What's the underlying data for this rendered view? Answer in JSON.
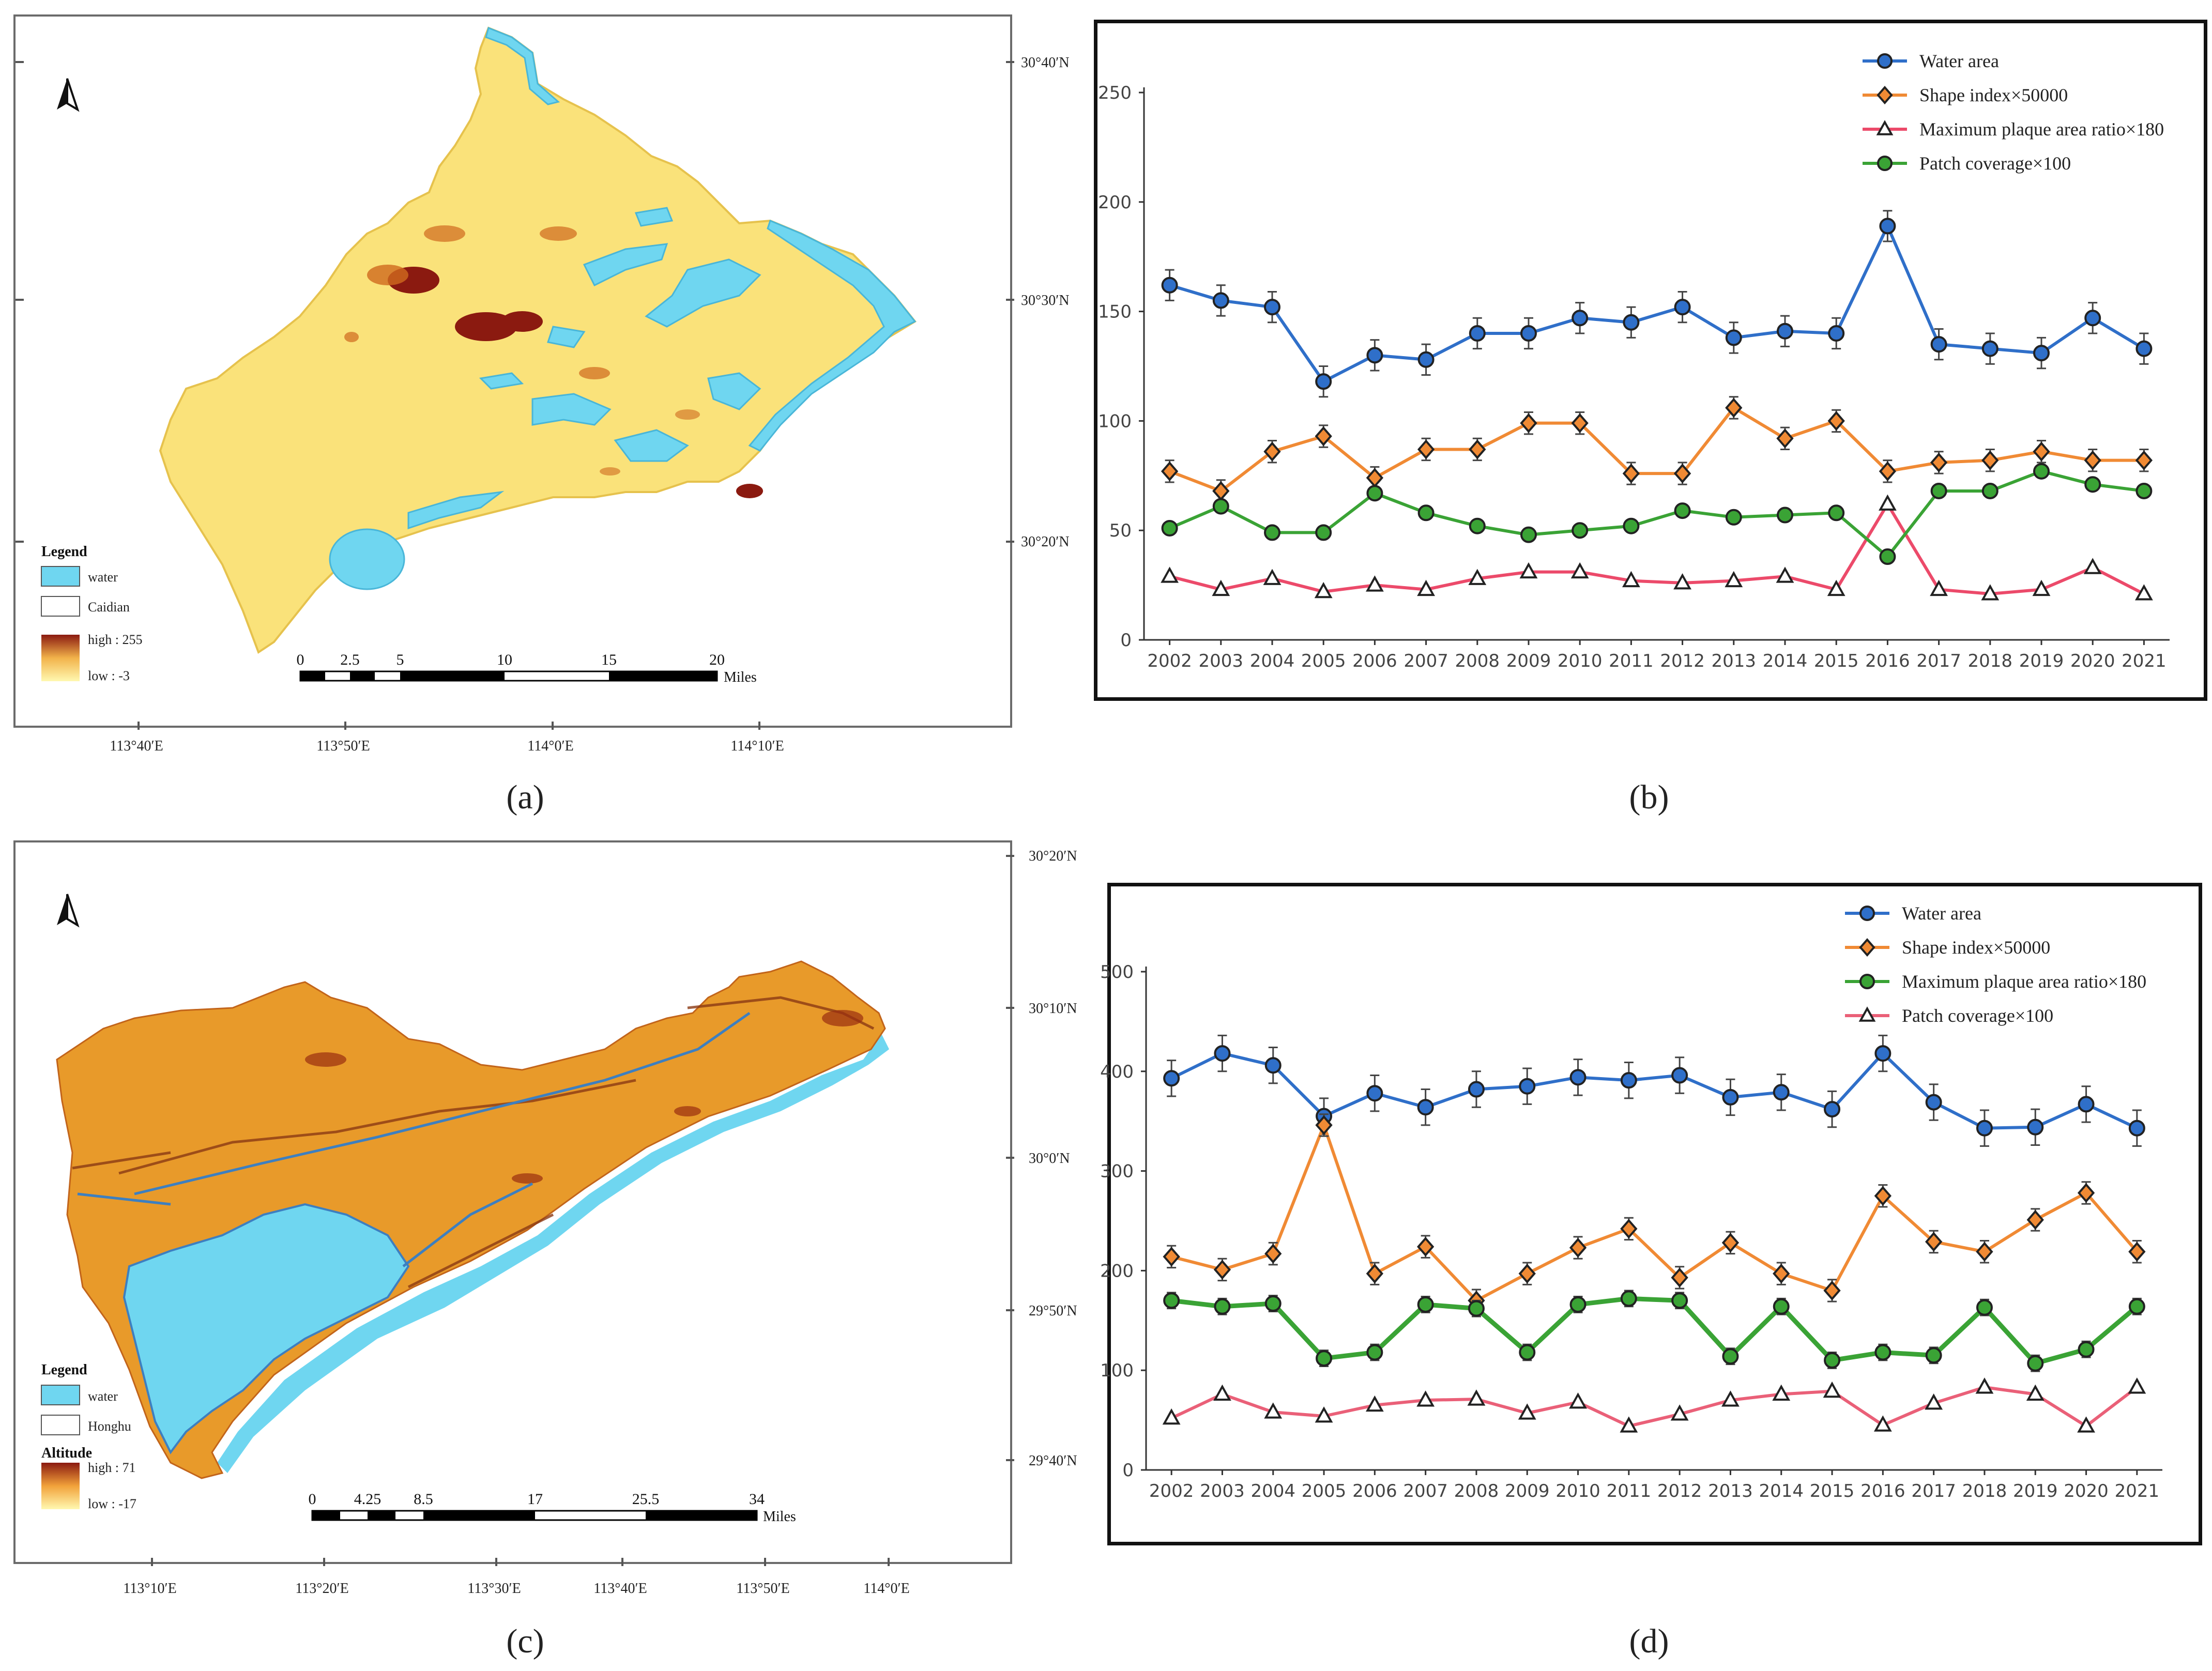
{
  "colors": {
    "water": "#6fd6f0",
    "water_edge": "#49b6d8",
    "land_a": "#fae27a",
    "land_a_edge": "#e6c24d",
    "hill": "#8b1a10",
    "hill_mid": "#cf6a1e",
    "land_c": "#e89a2a",
    "land_c_edge": "#c2641a",
    "low_c": "#fff2a0",
    "blue_series": "#2f6fc9",
    "orange_series": "#f08a34",
    "red_series": "#ec4a6a",
    "green_series": "#3aa335",
    "pink_series": "#ea6078"
  },
  "captions": {
    "a": "(a)",
    "b": "(b)",
    "c": "(c)",
    "d": "(d)"
  },
  "map_a": {
    "north": "N",
    "lat_labels": [
      "30°40′N",
      "30°30′N",
      "30°20′N"
    ],
    "lon_labels": [
      "113°40′E",
      "113°50′E",
      "114°0′E",
      "114°10′E"
    ],
    "legend": {
      "title": "Legend",
      "water": "water",
      "boundary": "Caidian",
      "high": "high : 255",
      "low": "low : -3"
    },
    "scale": {
      "ticks": [
        "0",
        "2.5",
        "5",
        "10",
        "15",
        "20"
      ],
      "unit": "Miles"
    }
  },
  "map_c": {
    "north": "N",
    "lat_labels": [
      "30°20′N",
      "30°10′N",
      "30°0′N",
      "29°50′N",
      "29°40′N"
    ],
    "lon_labels": [
      "113°10′E",
      "113°20′E",
      "113°30′E",
      "113°40′E",
      "113°50′E",
      "114°0′E"
    ],
    "legend": {
      "title": "Legend",
      "water": "water",
      "boundary": "Honghu",
      "altitude_title": "Altitude",
      "high": "high : 71",
      "low": "low : -17"
    },
    "scale": {
      "ticks": [
        "0",
        "4.25",
        "8.5",
        "17",
        "25.5",
        "34"
      ],
      "unit": "Miles"
    }
  },
  "chart_data": [
    {
      "type": "line",
      "panel": "b",
      "x": [
        "2002",
        "2003",
        "2004",
        "2005",
        "2006",
        "2007",
        "2008",
        "2009",
        "2010",
        "2011",
        "2012",
        "2013",
        "2014",
        "2015",
        "2016",
        "2017",
        "2018",
        "2019",
        "2020",
        "2021"
      ],
      "ylim": [
        0,
        250
      ],
      "yticks": [
        0,
        50,
        100,
        150,
        200,
        250
      ],
      "legend_position": "top-right",
      "series": [
        {
          "name": "Water area",
          "color": "#2f6fc9",
          "marker": "circle",
          "marker_fill": "#2f6fc9",
          "error": 7,
          "values": [
            162,
            155,
            152,
            118,
            130,
            128,
            140,
            140,
            147,
            145,
            152,
            138,
            141,
            140,
            189,
            135,
            133,
            131,
            147,
            133
          ]
        },
        {
          "name": "Shape index×50000",
          "color": "#f08a34",
          "marker": "diamond",
          "marker_fill": "#f08a34",
          "error": 5,
          "values": [
            77,
            68,
            86,
            93,
            74,
            87,
            87,
            99,
            99,
            76,
            76,
            106,
            92,
            100,
            77,
            81,
            82,
            86,
            82,
            82
          ]
        },
        {
          "name": "Maximum plaque area ratio×180",
          "color": "#ec4a6a",
          "marker": "triangle",
          "marker_fill": "#ffffff",
          "error": 0,
          "values": [
            29,
            23,
            28,
            22,
            25,
            23,
            28,
            31,
            31,
            27,
            26,
            27,
            29,
            23,
            62,
            23,
            21,
            23,
            33,
            21
          ]
        },
        {
          "name": "Patch coverage×100",
          "color": "#3aa335",
          "marker": "circle",
          "marker_fill": "#3aa335",
          "error": 0,
          "values": [
            51,
            61,
            49,
            49,
            67,
            58,
            52,
            48,
            50,
            52,
            59,
            56,
            57,
            58,
            38,
            68,
            68,
            77,
            71,
            68
          ]
        }
      ]
    },
    {
      "type": "line",
      "panel": "d",
      "x": [
        "2002",
        "2003",
        "2004",
        "2005",
        "2006",
        "2007",
        "2008",
        "2009",
        "2010",
        "2011",
        "2012",
        "2013",
        "2014",
        "2015",
        "2016",
        "2017",
        "2018",
        "2019",
        "2020",
        "2021"
      ],
      "ylim": [
        0,
        500
      ],
      "yticks": [
        0,
        100,
        200,
        300,
        400,
        500
      ],
      "legend_position": "top-right",
      "series": [
        {
          "name": "Water area",
          "color": "#2f6fc9",
          "marker": "circle",
          "marker_fill": "#2f6fc9",
          "error": 18,
          "values": [
            393,
            418,
            406,
            355,
            378,
            364,
            382,
            385,
            394,
            391,
            396,
            374,
            379,
            362,
            418,
            369,
            343,
            344,
            367,
            343
          ]
        },
        {
          "name": "Shape index×50000",
          "color": "#f08a34",
          "marker": "diamond",
          "marker_fill": "#f08a34",
          "error": 11,
          "values": [
            214,
            201,
            217,
            346,
            197,
            224,
            170,
            197,
            223,
            242,
            193,
            228,
            197,
            180,
            275,
            229,
            219,
            251,
            278,
            219
          ]
        },
        {
          "name": "Maximum plaque area ratio×180",
          "color": "#3aa335",
          "marker": "circle",
          "marker_fill": "#3aa335",
          "error": 8,
          "values": [
            170,
            164,
            167,
            112,
            118,
            166,
            162,
            118,
            166,
            172,
            170,
            114,
            164,
            110,
            118,
            115,
            163,
            107,
            121,
            164
          ]
        },
        {
          "name": "Patch coverage×100",
          "color": "#ea6078",
          "marker": "triangle",
          "marker_fill": "#ffffff",
          "error": 0,
          "values": [
            52,
            76,
            58,
            54,
            65,
            70,
            71,
            57,
            68,
            44,
            56,
            70,
            76,
            79,
            45,
            67,
            83,
            76,
            44,
            83
          ]
        }
      ]
    }
  ]
}
